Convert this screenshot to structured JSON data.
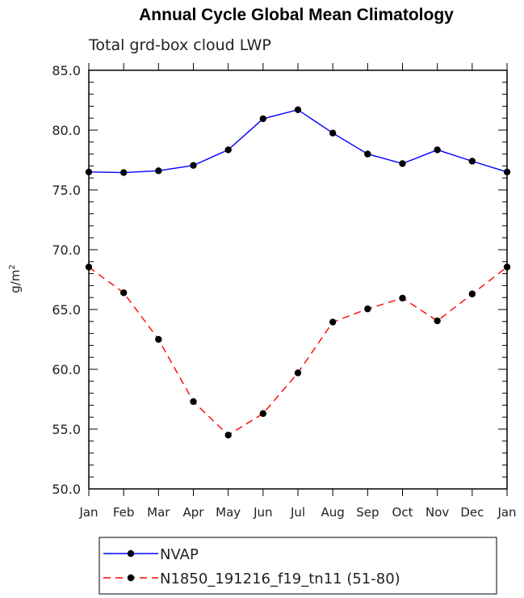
{
  "chart_data": {
    "type": "line",
    "title": "Annual Cycle Global Mean Climatology",
    "subtitle": "Total grd-box cloud LWP",
    "ylabel": "g/m",
    "ylabel_sup": "2",
    "ylim": [
      50.0,
      85.0
    ],
    "yticks": [
      "50.0",
      "55.0",
      "60.0",
      "65.0",
      "70.0",
      "75.0",
      "80.0",
      "85.0"
    ],
    "categories": [
      "Jan",
      "Feb",
      "Mar",
      "Apr",
      "May",
      "Jun",
      "Jul",
      "Aug",
      "Sep",
      "Oct",
      "Nov",
      "Dec",
      "Jan"
    ],
    "series": [
      {
        "name": "NVAP",
        "color": "#0000ff",
        "dashed": false,
        "values": [
          76.5,
          76.45,
          76.6,
          77.05,
          78.35,
          80.95,
          81.7,
          79.75,
          78.0,
          77.2,
          78.35,
          77.4,
          76.5
        ]
      },
      {
        "name": "N1850_191216_f19_tn11 (51-80)",
        "color": "#ff0000",
        "dashed": true,
        "values": [
          68.55,
          66.4,
          62.5,
          57.3,
          54.5,
          56.3,
          59.7,
          63.95,
          65.05,
          65.95,
          64.05,
          66.3,
          68.55
        ]
      }
    ],
    "legend_position": "bottom"
  }
}
